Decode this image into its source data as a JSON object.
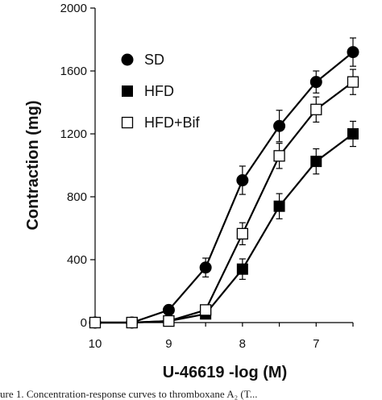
{
  "chart_data": {
    "type": "line",
    "title": "",
    "xlabel": "U-46619 -log (M)",
    "ylabel": "Contraction (mg)",
    "x_reversed": true,
    "xlim": [
      10,
      6.5
    ],
    "ylim": [
      0,
      2000
    ],
    "xticks": [
      10,
      9,
      8,
      7
    ],
    "yticks": [
      0,
      400,
      800,
      1200,
      1600,
      2000
    ],
    "x": [
      10,
      9.5,
      9,
      8.5,
      8,
      7.5,
      7,
      6.5
    ],
    "series": [
      {
        "name": "SD",
        "marker": "circle",
        "color": "#000000",
        "values": [
          0,
          0,
          80,
          350,
          905,
          1250,
          1530,
          1720
        ],
        "errors": [
          0,
          0,
          15,
          60,
          90,
          100,
          70,
          90
        ]
      },
      {
        "name": "HFD",
        "marker": "filled-square",
        "color": "#000000",
        "values": [
          0,
          0,
          10,
          55,
          340,
          740,
          1025,
          1200
        ],
        "errors": [
          0,
          0,
          5,
          20,
          65,
          80,
          80,
          80
        ]
      },
      {
        "name": "HFD+Bif",
        "marker": "open-square",
        "color": "#000000",
        "values": [
          0,
          0,
          10,
          80,
          565,
          1060,
          1355,
          1530
        ],
        "errors": [
          0,
          0,
          5,
          20,
          70,
          80,
          80,
          80
        ]
      }
    ],
    "legend_position": "top-left",
    "grid": false
  },
  "caption": "ure 1. Concentration-response curves to thromboxane A₂ (T..."
}
